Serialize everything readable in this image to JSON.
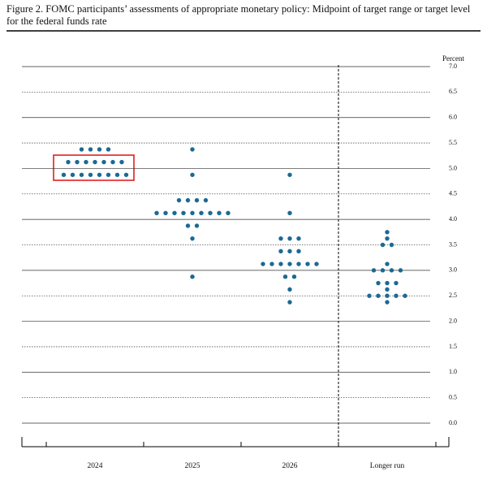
{
  "chart_data": {
    "type": "dot",
    "title": "Figure 2.  FOMC participants’ assessments of appropriate monetary policy:  Midpoint of target range or target level for the federal funds rate",
    "y_label": "Percent",
    "categories": [
      "2024",
      "2025",
      "2026",
      "Longer run"
    ],
    "dots": [
      [
        5.375,
        5.375,
        5.375,
        5.375,
        5.125,
        5.125,
        5.125,
        5.125,
        5.125,
        5.125,
        5.125,
        4.875,
        4.875,
        4.875,
        4.875,
        4.875,
        4.875,
        4.875,
        4.875
      ],
      [
        5.375,
        4.875,
        4.375,
        4.375,
        4.375,
        4.375,
        4.125,
        4.125,
        4.125,
        4.125,
        4.125,
        4.125,
        4.125,
        4.125,
        4.125,
        3.875,
        3.875,
        3.625,
        2.875
      ],
      [
        4.875,
        4.125,
        3.625,
        3.625,
        3.625,
        3.375,
        3.375,
        3.375,
        3.125,
        3.125,
        3.125,
        3.125,
        3.125,
        3.125,
        3.125,
        2.875,
        2.875,
        2.625,
        2.375
      ],
      [
        3.75,
        3.625,
        3.5,
        3.5,
        3.125,
        3.0,
        3.0,
        3.0,
        3.0,
        2.75,
        2.75,
        2.75,
        2.625,
        2.5,
        2.5,
        2.5,
        2.5,
        2.5,
        2.375
      ]
    ],
    "color": "#1a6a93",
    "ylim": [
      0,
      7
    ],
    "yticks": [
      {
        "value": 0,
        "label": "0.0"
      },
      {
        "value": 0.5,
        "label": "0.5"
      },
      {
        "value": 1,
        "label": "1.0"
      },
      {
        "value": 1.5,
        "label": "1.5"
      },
      {
        "value": 2,
        "label": "2.0"
      },
      {
        "value": 2.5,
        "label": "2.5"
      },
      {
        "value": 3,
        "label": "3.0"
      },
      {
        "value": 3.5,
        "label": "3.5"
      },
      {
        "value": 4,
        "label": "4.0"
      },
      {
        "value": 4.5,
        "label": "4.5"
      },
      {
        "value": 5,
        "label": "5.0"
      },
      {
        "value": 5.5,
        "label": "5.5"
      },
      {
        "value": 6,
        "label": "6.0"
      },
      {
        "value": 6.5,
        "label": "6.5"
      },
      {
        "value": 7,
        "label": "7.0"
      }
    ],
    "grid": true
  }
}
